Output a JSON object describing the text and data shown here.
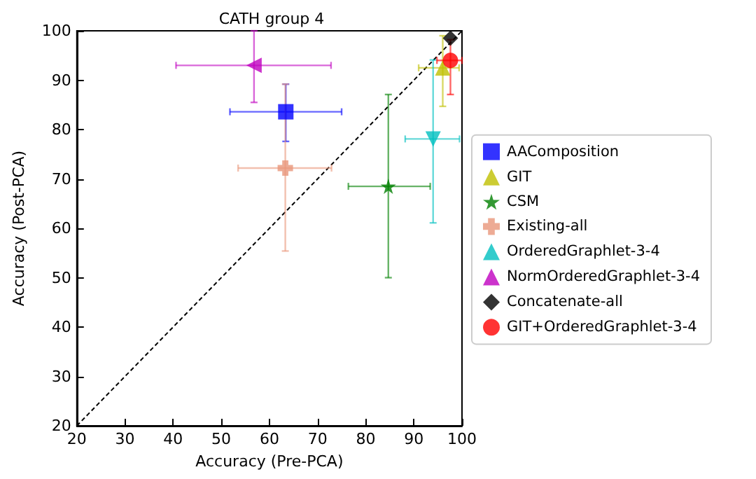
{
  "chart_data": {
    "type": "scatter",
    "title": "CATH group 4",
    "xlabel": "Accuracy (Pre-PCA)",
    "ylabel": "Accuracy (Post-PCA)",
    "xlim": [
      20,
      100
    ],
    "ylim": [
      20,
      100
    ],
    "xticks": [
      20,
      30,
      40,
      50,
      60,
      70,
      80,
      90,
      100
    ],
    "yticks": [
      20,
      30,
      40,
      50,
      60,
      70,
      80,
      90,
      100
    ],
    "grid": false,
    "legend": "right",
    "series": [
      {
        "name": "AAComposition",
        "color": "#0000ff",
        "marker": "square",
        "x": [
          63.4
        ],
        "values": [
          83.6
        ],
        "errors": [
          [
            77.6,
            89.2
          ]
        ],
        "xerrors": [
          [
            51.8,
            75.0
          ]
        ]
      },
      {
        "name": "GIT",
        "color": "#bfbf00",
        "marker": "triangle",
        "x": [
          96.0
        ],
        "values": [
          92.5
        ],
        "errors": [
          [
            84.7,
            99
          ]
        ],
        "xerrors": [
          [
            91.0,
            99.4
          ]
        ]
      },
      {
        "name": "CSM",
        "color": "#008000",
        "marker": "star",
        "x": [
          84.7
        ],
        "values": [
          68.5
        ],
        "errors": [
          [
            50.0,
            87.1
          ]
        ],
        "xerrors": [
          [
            76.4,
            93.4
          ]
        ]
      },
      {
        "name": "Existing-all",
        "color": "#e9967a",
        "marker": "cross",
        "x": [
          63.3
        ],
        "values": [
          72.2
        ],
        "errors": [
          [
            55.4,
            89.2
          ]
        ],
        "xerrors": [
          [
            53.5,
            72.9
          ]
        ]
      },
      {
        "name": "OrderedGraphlet-3-4",
        "color": "#00bfbf",
        "marker": "triangle-down",
        "x": [
          94.0
        ],
        "values": [
          78.1
        ],
        "errors": [
          [
            61.1,
            94.1
          ]
        ],
        "xerrors": [
          [
            88.2,
            99.5
          ]
        ]
      },
      {
        "name": "NormOrderedGraphlet-3-4",
        "color": "#bf00bf",
        "marker": "triangle-left",
        "x": [
          56.8
        ],
        "values": [
          93.0
        ],
        "errors": [
          [
            85.5,
            100
          ]
        ],
        "xerrors": [
          [
            40.6,
            72.8
          ]
        ]
      },
      {
        "name": "Concatenate-all",
        "color": "#000000",
        "marker": "diamond",
        "x": [
          97.6
        ],
        "values": [
          98.5
        ]
      },
      {
        "name": "GIT+OrderedGraphlet-3-4",
        "color": "#ff0000",
        "marker": "circle",
        "x": [
          97.6
        ],
        "values": [
          94.0
        ],
        "errors": [
          [
            87.1,
            98.2
          ]
        ],
        "xerrors": [
          [
            94.8,
            100
          ]
        ]
      },
      {
        "type": "line",
        "color": "#000000",
        "line_style": "dashed",
        "marker": "none",
        "x": [
          20,
          100
        ],
        "values": [
          20,
          100
        ]
      }
    ]
  }
}
